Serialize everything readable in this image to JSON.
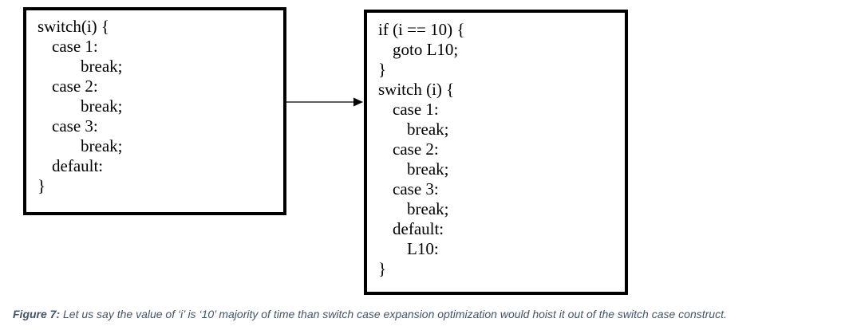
{
  "left_box": {
    "lines": [
      "switch(i) {",
      "case 1:",
      "break;",
      "case 2:",
      "break;",
      "case 3:",
      "break;",
      "default:",
      "}"
    ]
  },
  "right_box": {
    "lines": [
      "if (i == 10) {",
      "goto L10;",
      "}",
      "switch (i) {",
      "case 1:",
      "break;",
      "case 2:",
      "break;",
      "case 3:",
      "break;",
      "default:",
      "L10:",
      "}"
    ]
  },
  "caption": {
    "label": "Figure 7:",
    "text": " Let us say the value of ‘i’ is ‘10’ majority of time than switch case expansion optimization would hoist it out of the switch case construct."
  }
}
